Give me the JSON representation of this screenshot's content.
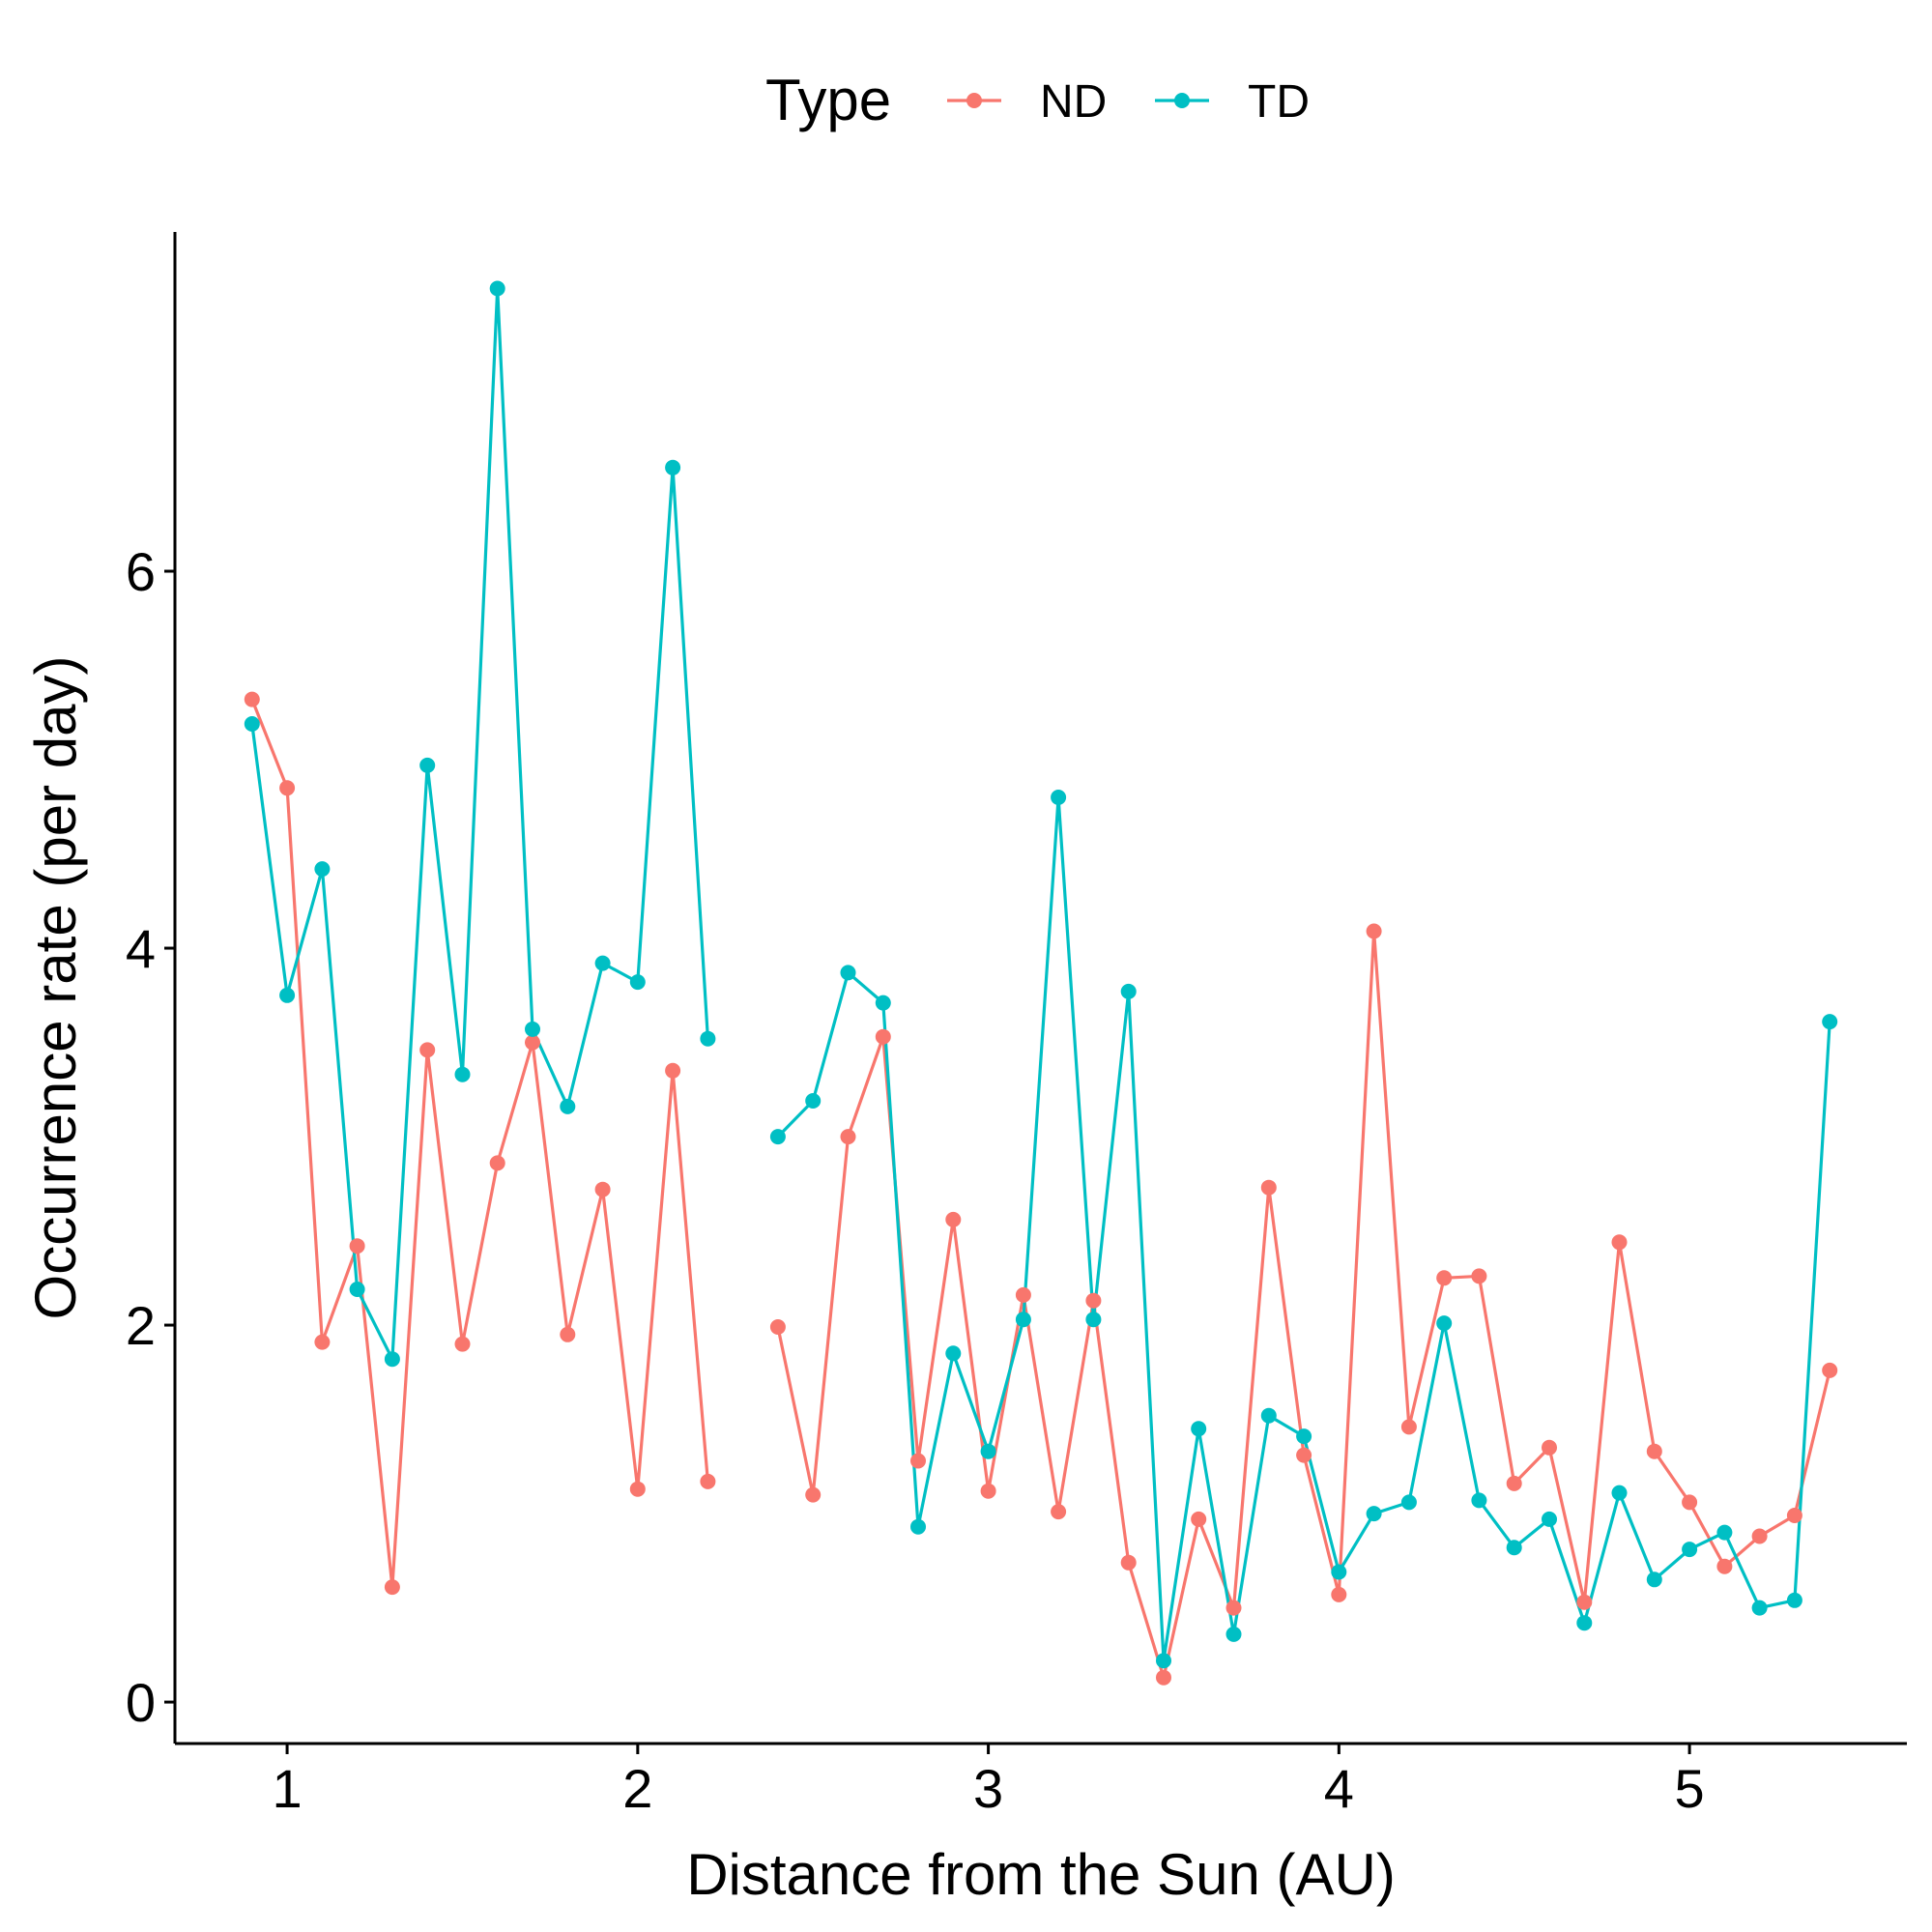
{
  "chart_data": {
    "type": "line",
    "title": "",
    "xlabel": "Distance from the Sun (AU)",
    "ylabel": "Occurrence rate (per day)",
    "xlim": [
      0.68,
      5.62
    ],
    "ylim": [
      -0.22,
      7.8
    ],
    "xticks": [
      1,
      2,
      3,
      4,
      5
    ],
    "yticks": [
      0,
      2,
      4,
      6
    ],
    "grid": false,
    "legend": {
      "title": "Type",
      "position": "top"
    },
    "series": [
      {
        "name": "ND",
        "color": "#F8766D",
        "points": [
          [
            0.9,
            5.32
          ],
          [
            1.0,
            4.85
          ],
          [
            1.1,
            1.91
          ],
          [
            1.2,
            2.42
          ],
          [
            1.3,
            0.61
          ],
          [
            1.4,
            3.46
          ],
          [
            1.5,
            1.9
          ],
          [
            1.6,
            2.86
          ],
          [
            1.7,
            3.5
          ],
          [
            1.8,
            1.95
          ],
          [
            1.9,
            2.72
          ],
          [
            2.0,
            1.13
          ],
          [
            2.1,
            3.35
          ],
          [
            2.2,
            1.17
          ],
          [
            2.4,
            1.99
          ],
          [
            2.5,
            1.1
          ],
          [
            2.6,
            3.0
          ],
          [
            2.7,
            3.53
          ],
          [
            2.8,
            1.28
          ],
          [
            2.9,
            2.56
          ],
          [
            3.0,
            1.12
          ],
          [
            3.1,
            2.16
          ],
          [
            3.2,
            1.01
          ],
          [
            3.3,
            2.13
          ],
          [
            3.4,
            0.74
          ],
          [
            3.5,
            0.13
          ],
          [
            3.6,
            0.97
          ],
          [
            3.7,
            0.5
          ],
          [
            3.8,
            2.73
          ],
          [
            3.9,
            1.31
          ],
          [
            4.0,
            0.57
          ],
          [
            4.1,
            4.09
          ],
          [
            4.2,
            1.46
          ],
          [
            4.3,
            2.25
          ],
          [
            4.4,
            2.26
          ],
          [
            4.5,
            1.16
          ],
          [
            4.6,
            1.35
          ],
          [
            4.7,
            0.53
          ],
          [
            4.8,
            2.44
          ],
          [
            4.9,
            1.33
          ],
          [
            5.0,
            1.06
          ],
          [
            5.1,
            0.72
          ],
          [
            5.2,
            0.88
          ],
          [
            5.3,
            0.99
          ],
          [
            5.4,
            1.76
          ]
        ]
      },
      {
        "name": "TD",
        "color": "#00BFC4",
        "points": [
          [
            0.9,
            5.19
          ],
          [
            1.0,
            3.75
          ],
          [
            1.1,
            4.42
          ],
          [
            1.2,
            2.19
          ],
          [
            1.3,
            1.82
          ],
          [
            1.4,
            4.97
          ],
          [
            1.5,
            3.33
          ],
          [
            1.6,
            7.5
          ],
          [
            1.7,
            3.57
          ],
          [
            1.8,
            3.16
          ],
          [
            1.9,
            3.92
          ],
          [
            2.0,
            3.82
          ],
          [
            2.1,
            6.55
          ],
          [
            2.2,
            3.52
          ],
          [
            2.4,
            3.0
          ],
          [
            2.5,
            3.19
          ],
          [
            2.6,
            3.87
          ],
          [
            2.7,
            3.71
          ],
          [
            2.8,
            0.93
          ],
          [
            2.9,
            1.85
          ],
          [
            3.0,
            1.33
          ],
          [
            3.1,
            2.03
          ],
          [
            3.2,
            4.8
          ],
          [
            3.3,
            2.03
          ],
          [
            3.4,
            3.77
          ],
          [
            3.5,
            0.22
          ],
          [
            3.6,
            1.45
          ],
          [
            3.7,
            0.36
          ],
          [
            3.8,
            1.52
          ],
          [
            3.9,
            1.41
          ],
          [
            4.0,
            0.69
          ],
          [
            4.1,
            1.0
          ],
          [
            4.2,
            1.06
          ],
          [
            4.3,
            2.01
          ],
          [
            4.4,
            1.07
          ],
          [
            4.5,
            0.82
          ],
          [
            4.6,
            0.97
          ],
          [
            4.7,
            0.42
          ],
          [
            4.8,
            1.11
          ],
          [
            4.9,
            0.65
          ],
          [
            5.0,
            0.81
          ],
          [
            5.1,
            0.9
          ],
          [
            5.2,
            0.5
          ],
          [
            5.3,
            0.54
          ],
          [
            5.4,
            3.61
          ]
        ]
      }
    ]
  }
}
